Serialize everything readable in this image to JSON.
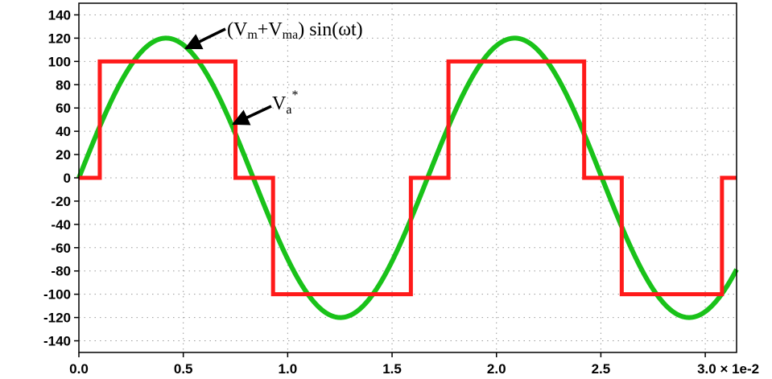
{
  "chart_data": {
    "type": "line",
    "title": "",
    "xlabel": "",
    "ylabel": "",
    "xlim": [
      0,
      0.0315
    ],
    "ylim": [
      -150,
      150
    ],
    "x_ticks": [
      0,
      0.005,
      0.01,
      0.015,
      0.02,
      0.025,
      0.03
    ],
    "x_tick_labels": [
      "0.0",
      "0.5",
      "1.0",
      "1.5",
      "2.0",
      "2.5",
      "3.0 × 1e-2"
    ],
    "y_ticks": [
      140,
      120,
      100,
      80,
      60,
      40,
      20,
      0,
      -20,
      -40,
      -60,
      -80,
      -100,
      -120,
      -140
    ],
    "y_tick_labels": [
      "140",
      "120",
      "100",
      "80",
      "60",
      "40",
      "20",
      "0",
      "-20",
      "-40",
      "-60",
      "-80",
      "-100",
      "-120",
      "-140"
    ],
    "grid": true,
    "series": [
      {
        "name": "(Vm+Vma) sin(ωt)",
        "color": "#19c219",
        "kind": "sine",
        "amplitude": 120,
        "period": 0.0167,
        "x": [
          0,
          0.0315
        ]
      },
      {
        "name": "Va*",
        "color": "#ff1a1a",
        "kind": "step",
        "x": [
          0,
          0.001,
          0.001,
          0.0075,
          0.0075,
          0.0093,
          0.0093,
          0.0159,
          0.0159,
          0.0177,
          0.0177,
          0.0242,
          0.0242,
          0.026,
          0.026,
          0.0308,
          0.0308,
          0.0315
        ],
        "y": [
          0,
          0,
          100,
          100,
          0,
          0,
          -100,
          -100,
          0,
          0,
          100,
          100,
          0,
          0,
          -100,
          -100,
          0,
          0
        ]
      }
    ],
    "annotations": [
      {
        "id": "sine",
        "points_to": [
          0.0052,
          112
        ]
      },
      {
        "id": "step",
        "points_to": [
          0.0077,
          45
        ]
      }
    ]
  }
}
